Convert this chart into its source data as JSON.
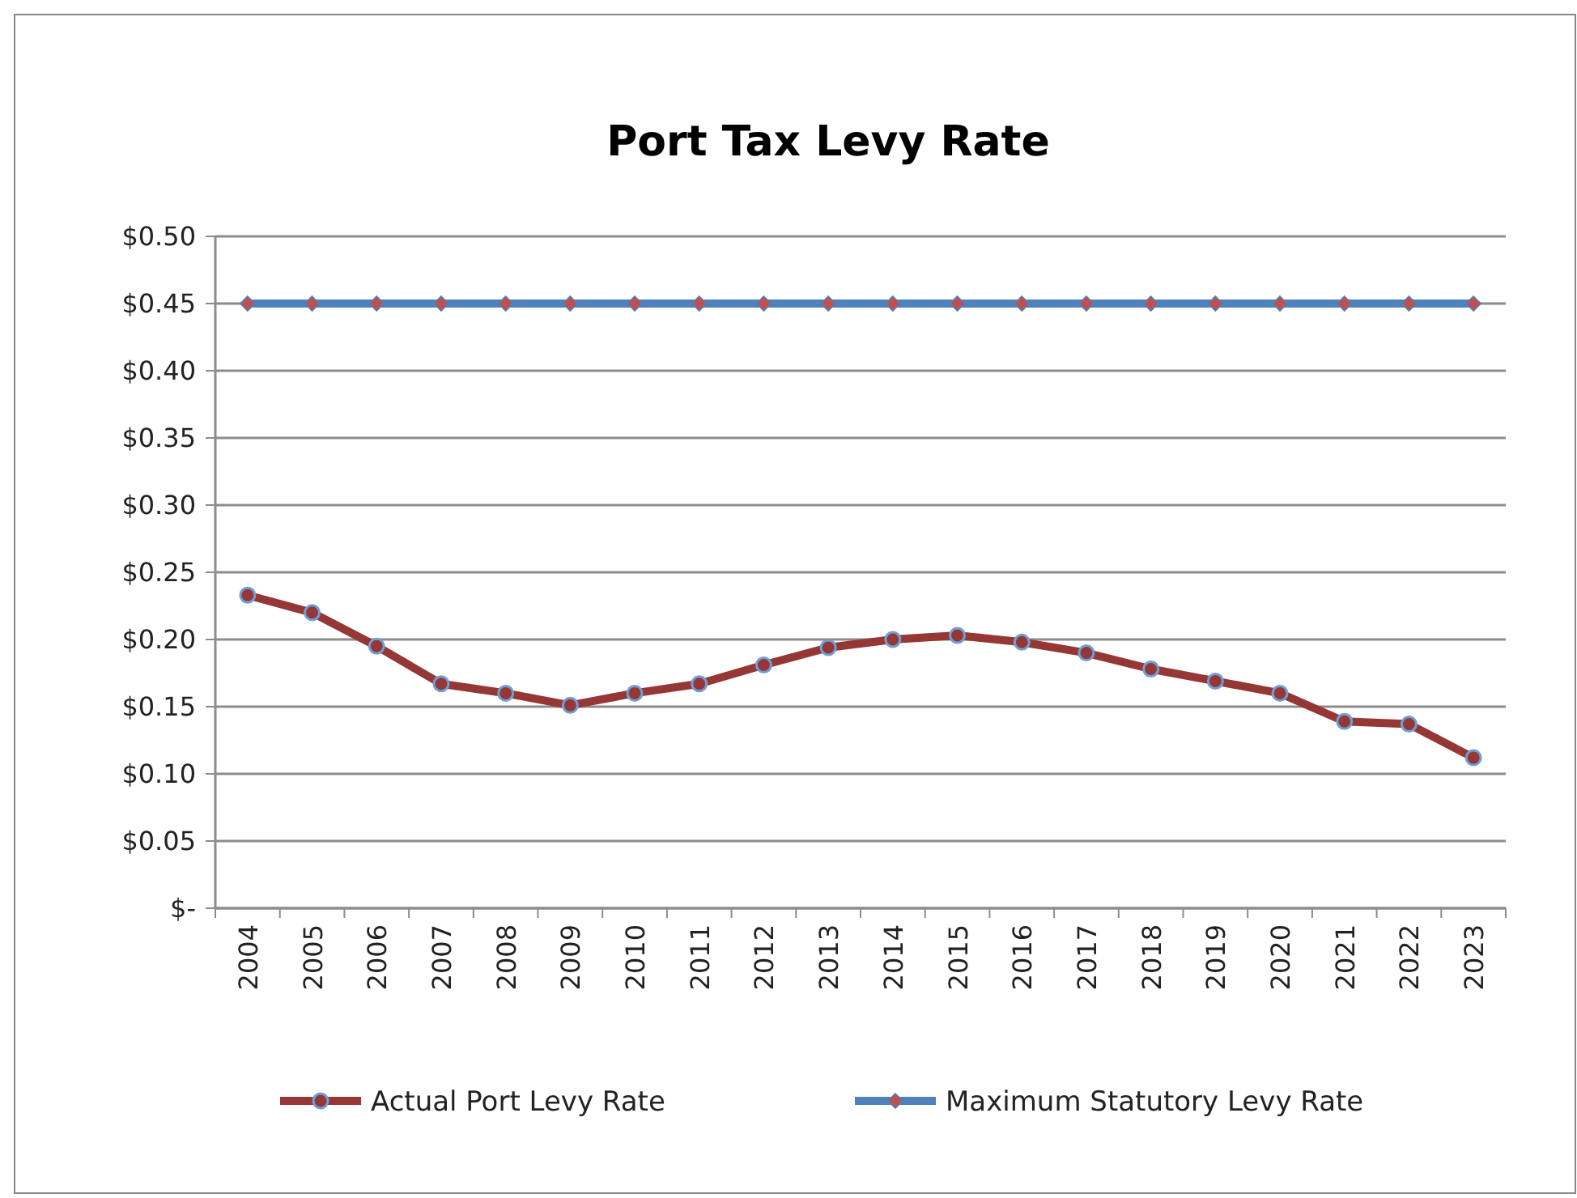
{
  "chart_data": {
    "type": "line",
    "title": "Port Tax Levy Rate",
    "categories": [
      "2004",
      "2005",
      "2006",
      "2007",
      "2008",
      "2009",
      "2010",
      "2011",
      "2012",
      "2013",
      "2014",
      "2015",
      "2016",
      "2017",
      "2018",
      "2019",
      "2020",
      "2021",
      "2022",
      "2023"
    ],
    "series": [
      {
        "name": "Actual Port Levy Rate",
        "color": "#953735",
        "marker": "circle",
        "values": [
          0.233,
          0.22,
          0.195,
          0.167,
          0.16,
          0.151,
          0.16,
          0.167,
          0.181,
          0.194,
          0.2,
          0.203,
          0.198,
          0.19,
          0.178,
          0.169,
          0.16,
          0.139,
          0.137,
          0.112
        ]
      },
      {
        "name": "Maximum Statutory Levy Rate",
        "color": "#4f81bd",
        "marker": "diamond",
        "values": [
          0.45,
          0.45,
          0.45,
          0.45,
          0.45,
          0.45,
          0.45,
          0.45,
          0.45,
          0.45,
          0.45,
          0.45,
          0.45,
          0.45,
          0.45,
          0.45,
          0.45,
          0.45,
          0.45,
          0.45
        ]
      }
    ],
    "ylim": [
      0,
      0.5
    ],
    "yticks": [
      {
        "value": 0,
        "label": "$-"
      },
      {
        "value": 0.05,
        "label": "$0.05"
      },
      {
        "value": 0.1,
        "label": "$0.10"
      },
      {
        "value": 0.15,
        "label": "$0.15"
      },
      {
        "value": 0.2,
        "label": "$0.20"
      },
      {
        "value": 0.25,
        "label": "$0.25"
      },
      {
        "value": 0.3,
        "label": "$0.30"
      },
      {
        "value": 0.35,
        "label": "$0.35"
      },
      {
        "value": 0.4,
        "label": "$0.40"
      },
      {
        "value": 0.45,
        "label": "$0.45"
      },
      {
        "value": 0.5,
        "label": "$0.50"
      }
    ],
    "grid": "y",
    "legend": "bottom",
    "line_style": "solid"
  }
}
